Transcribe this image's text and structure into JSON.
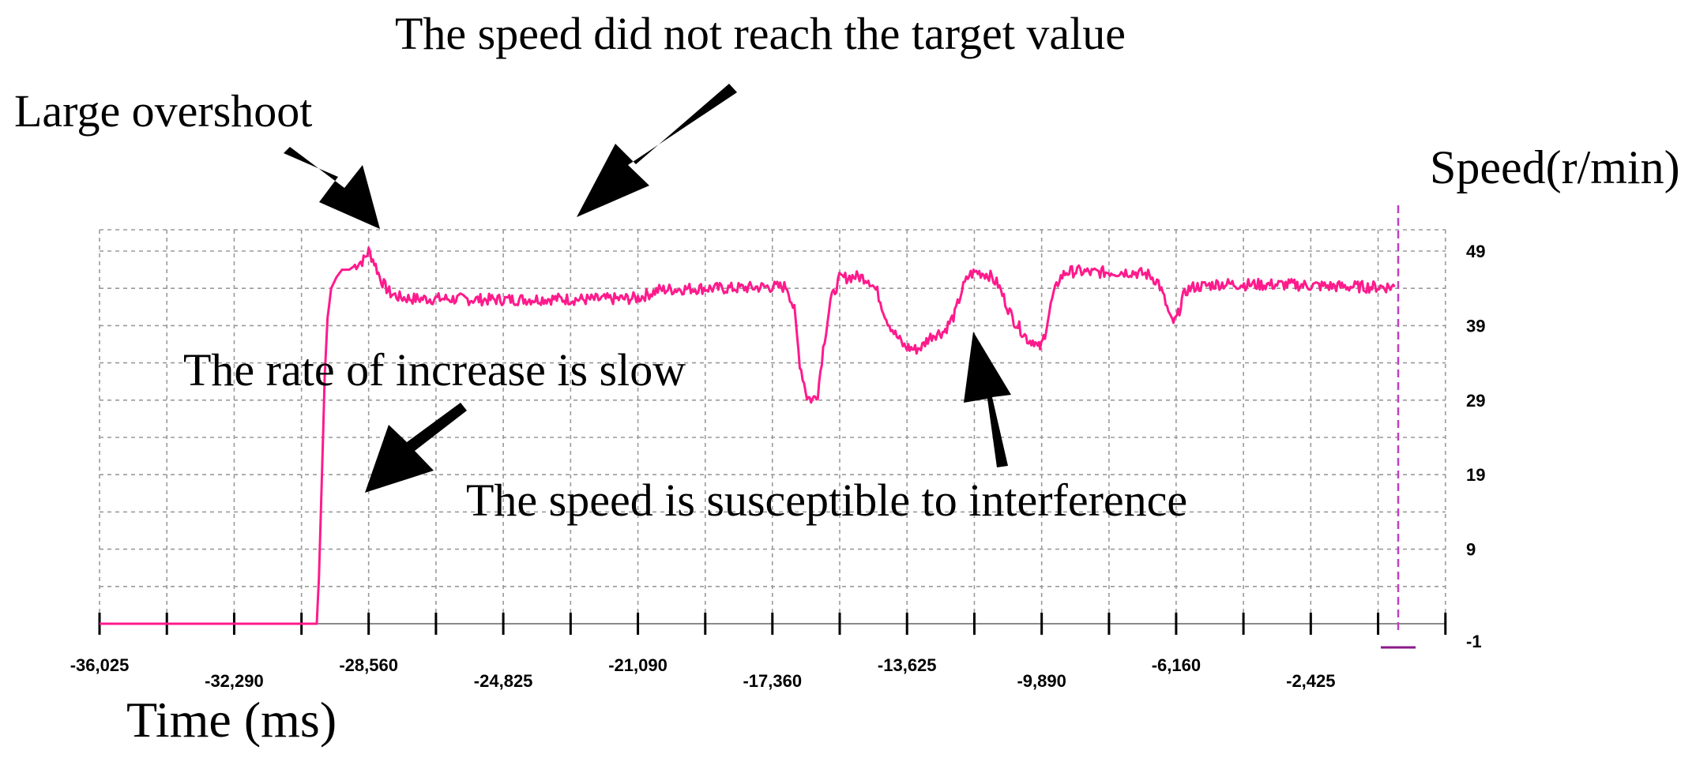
{
  "chart_data": {
    "type": "line",
    "title": "",
    "xlabel": "Time (ms)",
    "ylabel": "Speed(r/min)",
    "xlim": [
      -36025,
      0
    ],
    "ylim": [
      -1,
      49
    ],
    "x_ticks": [
      "-36,025",
      "-32,290",
      "-28,560",
      "-24,825",
      "-21,090",
      "-17,360",
      "-13,625",
      "-9,890",
      "-6,160",
      "-2,425"
    ],
    "x_tick_values": [
      -36025,
      -32290,
      -28560,
      -24825,
      -21090,
      -17360,
      -13625,
      -9890,
      -6160,
      -2425
    ],
    "y_ticks": [
      "49",
      "39",
      "29",
      "19",
      "9",
      "-1"
    ],
    "y_tick_values": [
      49,
      39,
      29,
      19,
      9,
      -1
    ],
    "grid": true,
    "series": [
      {
        "color": "#ff1a8c",
        "x": [
          -36025,
          -30000,
          -29940,
          -29860,
          -29780,
          -29700,
          -29600,
          -29450,
          -29300,
          -29100,
          -28900,
          -28700,
          -28560,
          -28400,
          -28250,
          -28100,
          -27950,
          -27700,
          -27300,
          -26500,
          -25500,
          -24500,
          -23500,
          -22500,
          -21500,
          -21090,
          -20500,
          -19500,
          -18500,
          -17500,
          -16950,
          -16750,
          -16600,
          -16400,
          -16250,
          -16100,
          -15950,
          -15750,
          -15500,
          -15100,
          -14900,
          -14700,
          -14450,
          -14200,
          -13950,
          -13700,
          -13400,
          -13200,
          -13050,
          -12900,
          -12600,
          -12300,
          -12100,
          -11900,
          -11700,
          -11500,
          -11350,
          -11100,
          -10700,
          -10400,
          -10250,
          -10100,
          -10000,
          -9900,
          -9800,
          -9600,
          -9400,
          -9200,
          -8900,
          -8500,
          -8000,
          -7400,
          -6900,
          -6650,
          -6450,
          -6300,
          -6200,
          -6100,
          -6000,
          -5850,
          -5650,
          -5400,
          -5000,
          -4000,
          -3000,
          -2000,
          -1000,
          -100
        ],
        "values": [
          -1,
          -1,
          5,
          18,
          32,
          40,
          44,
          45.5,
          46.5,
          46.5,
          47.2,
          47.8,
          49,
          47.5,
          45.5,
          44.2,
          43.3,
          42.8,
          42.6,
          42.6,
          42.5,
          42.5,
          42.6,
          42.5,
          42.6,
          42.7,
          43.8,
          44,
          44,
          44.2,
          44.2,
          41,
          34,
          29.5,
          29,
          30,
          36,
          42.2,
          45.3,
          45.6,
          45.5,
          45.3,
          43.5,
          40,
          37.8,
          36.2,
          35.8,
          36.2,
          37.2,
          37.8,
          38.2,
          40.5,
          43.8,
          45.8,
          46.2,
          46,
          45.8,
          44.5,
          40,
          38,
          37,
          37,
          36,
          36.2,
          38,
          42.5,
          45.3,
          46.2,
          46.3,
          46.1,
          46.2,
          46.2,
          45.8,
          44.8,
          42,
          39.6,
          39.5,
          40.5,
          42.5,
          43.8,
          44.2,
          44.3,
          44.6,
          44.5,
          44.5,
          44.3,
          44.2,
          44.2
        ]
      }
    ],
    "annotations": [
      "Large overshoot",
      "The speed did not reach the target value",
      "The rate of increase is slow",
      "The speed is susceptible to interference"
    ],
    "cursor_x": 0
  }
}
